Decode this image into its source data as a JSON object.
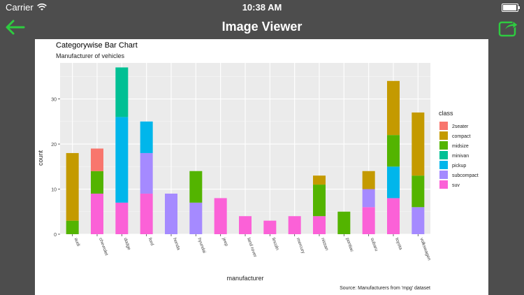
{
  "status_bar": {
    "carrier": "Carrier",
    "time": "10:38 AM",
    "battery_level": 0.95
  },
  "nav": {
    "title": "Image Viewer",
    "back_icon": "back-arrow-icon",
    "share_icon": "share-icon"
  },
  "colors": {
    "background": "#4d4d4d",
    "accent": "#2ecc40"
  },
  "chart_data": {
    "type": "bar",
    "stacked": true,
    "title": "Categorywise Bar Chart",
    "subtitle": "Manufacturer of vehicles",
    "xlabel": "manufacturer",
    "ylabel": "count",
    "caption": "Source: Manufacturers from 'mpg' dataset",
    "legend_title": "class",
    "legend_position": "right",
    "grid": true,
    "ylim": [
      0,
      38
    ],
    "yticks": [
      0,
      10,
      20,
      30
    ],
    "categories": [
      "audi",
      "chevrolet",
      "dodge",
      "ford",
      "honda",
      "hyundai",
      "jeep",
      "land rover",
      "lincoln",
      "mercury",
      "nissan",
      "pontiac",
      "subaru",
      "toyota",
      "volkswagen"
    ],
    "series": [
      {
        "name": "2seater",
        "color": "#f8766d",
        "values": [
          0,
          5,
          0,
          0,
          0,
          0,
          0,
          0,
          0,
          0,
          0,
          0,
          0,
          0,
          0
        ]
      },
      {
        "name": "compact",
        "color": "#c49a00",
        "values": [
          15,
          0,
          0,
          0,
          0,
          0,
          0,
          0,
          0,
          0,
          2,
          0,
          4,
          12,
          14
        ]
      },
      {
        "name": "midsize",
        "color": "#53b400",
        "values": [
          3,
          5,
          0,
          0,
          0,
          7,
          0,
          0,
          0,
          0,
          7,
          5,
          0,
          7,
          7
        ]
      },
      {
        "name": "minivan",
        "color": "#00c094",
        "values": [
          0,
          0,
          11,
          0,
          0,
          0,
          0,
          0,
          0,
          0,
          0,
          0,
          0,
          0,
          0
        ]
      },
      {
        "name": "pickup",
        "color": "#00b6eb",
        "values": [
          0,
          0,
          19,
          7,
          0,
          0,
          0,
          0,
          0,
          0,
          0,
          0,
          0,
          7,
          0
        ]
      },
      {
        "name": "subcompact",
        "color": "#a58aff",
        "values": [
          0,
          0,
          0,
          9,
          9,
          7,
          0,
          0,
          0,
          0,
          0,
          0,
          4,
          0,
          6
        ]
      },
      {
        "name": "suv",
        "color": "#fb61d7",
        "values": [
          0,
          9,
          7,
          9,
          0,
          0,
          8,
          4,
          3,
          4,
          4,
          0,
          6,
          8,
          0
        ]
      }
    ]
  }
}
